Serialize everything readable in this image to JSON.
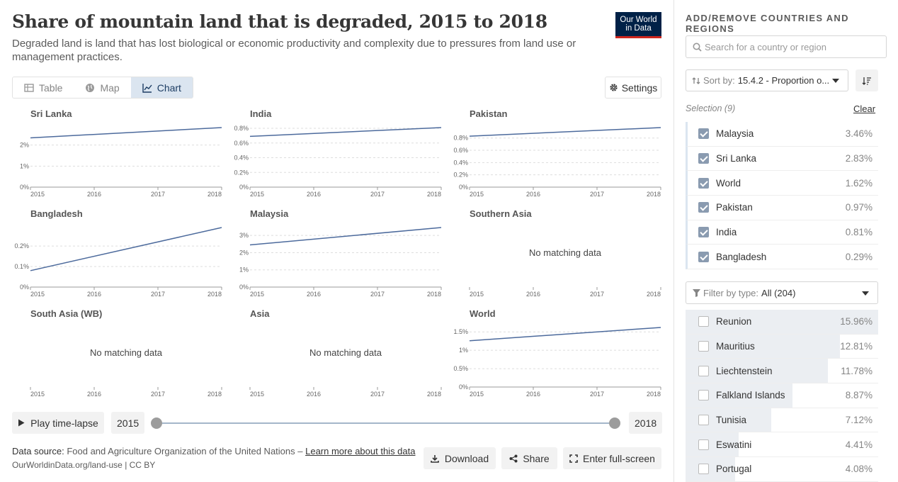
{
  "header": {
    "title": "Share of mountain land that is degraded, 2015 to 2018",
    "subtitle": "Degraded land is land that has lost biological or economic productivity and complexity due to pressures from land use or management practices.",
    "logo_line1": "Our World",
    "logo_line2": "in Data"
  },
  "tabs": [
    {
      "label": "Table",
      "icon": "table-icon"
    },
    {
      "label": "Map",
      "icon": "globe-icon"
    },
    {
      "label": "Chart",
      "icon": "line-chart-icon",
      "active": true
    }
  ],
  "settings_label": "Settings",
  "chart_data": [
    {
      "type": "line",
      "title": "Sri Lanka",
      "x": [
        2015,
        2018
      ],
      "values": [
        2.34,
        2.83
      ],
      "ylim": [
        0,
        2.83
      ],
      "yticks": [
        "0%",
        "1%",
        "2%"
      ],
      "ytick_values": [
        0,
        1,
        2
      ],
      "xticks": [
        "2015",
        "2016",
        "2017",
        "2018"
      ]
    },
    {
      "type": "line",
      "title": "India",
      "x": [
        2015,
        2018
      ],
      "values": [
        0.69,
        0.81
      ],
      "ylim": [
        0,
        0.81
      ],
      "yticks": [
        "0%",
        "0.2%",
        "0.4%",
        "0.6%",
        "0.8%"
      ],
      "ytick_values": [
        0,
        0.2,
        0.4,
        0.6,
        0.8
      ],
      "xticks": [
        "2015",
        "2016",
        "2017",
        "2018"
      ]
    },
    {
      "type": "line",
      "title": "Pakistan",
      "x": [
        2015,
        2018
      ],
      "values": [
        0.83,
        0.97
      ],
      "ylim": [
        0,
        0.97
      ],
      "yticks": [
        "0%",
        "0.2%",
        "0.4%",
        "0.6%",
        "0.8%"
      ],
      "ytick_values": [
        0,
        0.2,
        0.4,
        0.6,
        0.8
      ],
      "xticks": [
        "2015",
        "2016",
        "2017",
        "2018"
      ]
    },
    {
      "type": "line",
      "title": "Bangladesh",
      "x": [
        2015,
        2018
      ],
      "values": [
        0.08,
        0.29
      ],
      "ylim": [
        0,
        0.29
      ],
      "yticks": [
        "0%",
        "0.1%",
        "0.2%"
      ],
      "ytick_values": [
        0,
        0.1,
        0.2
      ],
      "xticks": [
        "2015",
        "2016",
        "2017",
        "2018"
      ]
    },
    {
      "type": "line",
      "title": "Malaysia",
      "x": [
        2015,
        2018
      ],
      "values": [
        2.45,
        3.46
      ],
      "ylim": [
        0,
        3.46
      ],
      "yticks": [
        "0%",
        "1%",
        "2%",
        "3%"
      ],
      "ytick_values": [
        0,
        1,
        2,
        3
      ],
      "xticks": [
        "2015",
        "2016",
        "2017",
        "2018"
      ]
    },
    {
      "type": "line",
      "title": "Southern Asia",
      "x": [],
      "values": [],
      "empty_label": "No matching data",
      "xticks": [
        "2015",
        "2016",
        "2017",
        "2018"
      ]
    },
    {
      "type": "line",
      "title": "South Asia (WB)",
      "x": [],
      "values": [],
      "empty_label": "No matching data",
      "xticks": [
        "2015",
        "2016",
        "2017",
        "2018"
      ]
    },
    {
      "type": "line",
      "title": "Asia",
      "x": [],
      "values": [],
      "empty_label": "No matching data",
      "xticks": [
        "2015",
        "2016",
        "2017",
        "2018"
      ]
    },
    {
      "type": "line",
      "title": "World",
      "x": [
        2015,
        2018
      ],
      "values": [
        1.26,
        1.62
      ],
      "ylim": [
        0,
        1.62
      ],
      "yticks": [
        "0%",
        "0.5%",
        "1%",
        "1.5%"
      ],
      "ytick_values": [
        0,
        0.5,
        1,
        1.5
      ],
      "xticks": [
        "2015",
        "2016",
        "2017",
        "2018"
      ]
    }
  ],
  "line_color": "#4c6a9c",
  "timeline": {
    "play_label": "Play time-lapse",
    "start_year": "2015",
    "end_year": "2018"
  },
  "footer": {
    "source_label": "Data source:",
    "source_text": "Food and Agriculture Organization of the United Nations",
    "source_sep": " – ",
    "learn_more": "Learn more about this data",
    "url": "OurWorldinData.org/land-use | CC BY",
    "download_label": "Download",
    "share_label": "Share",
    "fullscreen_label": "Enter full-screen"
  },
  "sidebar": {
    "heading": "ADD/REMOVE COUNTRIES AND REGIONS",
    "search_placeholder": "Search for a country or region",
    "sort_prefix": "Sort by:",
    "sort_value": "15.4.2 - Proportion o...",
    "selection_label": "Selection (9)",
    "clear_label": "Clear",
    "selected": [
      {
        "name": "Malaysia",
        "value": "3.46%"
      },
      {
        "name": "Sri Lanka",
        "value": "2.83%"
      },
      {
        "name": "World",
        "value": "1.62%"
      },
      {
        "name": "Pakistan",
        "value": "0.97%"
      },
      {
        "name": "India",
        "value": "0.81%"
      },
      {
        "name": "Bangladesh",
        "value": "0.29%"
      }
    ],
    "filter_prefix": "Filter by type:",
    "filter_value": "All (204)",
    "others": [
      {
        "name": "Reunion",
        "value": "15.96%",
        "share": 1.0
      },
      {
        "name": "Mauritius",
        "value": "12.81%",
        "share": 0.8026
      },
      {
        "name": "Liechtenstein",
        "value": "11.78%",
        "share": 0.7381
      },
      {
        "name": "Falkland Islands",
        "value": "8.87%",
        "share": 0.5558
      },
      {
        "name": "Tunisia",
        "value": "7.12%",
        "share": 0.4461
      },
      {
        "name": "Eswatini",
        "value": "4.41%",
        "share": 0.2763
      },
      {
        "name": "Portugal",
        "value": "4.08%",
        "share": 0.2556
      }
    ]
  }
}
